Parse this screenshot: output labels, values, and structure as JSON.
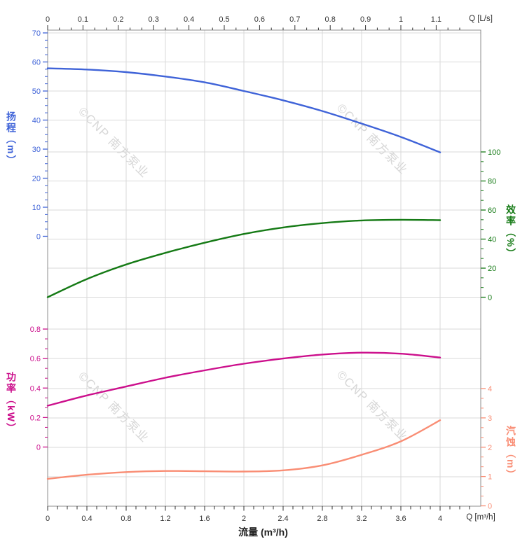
{
  "chart": {
    "watermark": "©CNP 南方泵业",
    "colors": {
      "head": "#3f63d8",
      "efficiency": "#157a15",
      "power": "#cc0f8c",
      "npsh": "#f98d74",
      "grid": "#d9d9d9",
      "border": "#8c8c8c",
      "tick": "#333333"
    },
    "axes": {
      "top": {
        "unit_label": "Q [L/s]",
        "ticks": [
          "0",
          "0.1",
          "0.2",
          "0.3",
          "0.4",
          "0.5",
          "0.6",
          "0.7",
          "0.8",
          "0.9",
          "1",
          "1.1"
        ]
      },
      "bottom": {
        "unit_label": "Q [m³/h]",
        "title": "流量 (m³/h)",
        "ticks": [
          "0",
          "0.4",
          "0.8",
          "1.2",
          "1.6",
          "2",
          "2.4",
          "2.8",
          "3.2",
          "3.6",
          "4"
        ]
      },
      "head": {
        "title": "扬程（m）",
        "ticks": [
          "70",
          "60",
          "50",
          "40",
          "30",
          "20",
          "10",
          "0"
        ]
      },
      "efficiency": {
        "title": "效率（%）",
        "ticks": [
          "100",
          "80",
          "60",
          "40",
          "20",
          "0"
        ]
      },
      "power": {
        "title": "功率（kW）",
        "ticks": [
          "0.8",
          "0.6",
          "0.4",
          "0.2",
          "0"
        ]
      },
      "npsh": {
        "title": "汽蚀（m）",
        "ticks": [
          "4",
          "3",
          "2",
          "1",
          "0"
        ]
      }
    }
  },
  "chart_data": {
    "type": "line",
    "title": "",
    "xlabel": "流量 (m³/h)",
    "x_units": {
      "bottom": "m³/h",
      "top": "L/s"
    },
    "x": [
      0,
      0.4,
      0.8,
      1.2,
      1.6,
      2.0,
      2.4,
      2.8,
      3.2,
      3.6,
      4.0
    ],
    "x_range_bottom": [
      0,
      4.4
    ],
    "x_range_top_Ls": [
      0,
      1.22
    ],
    "grid": true,
    "legend": "none",
    "series": [
      {
        "name": "扬程",
        "unit": "m",
        "axis_side": "left-top",
        "axis_range": [
          0,
          70
        ],
        "values": [
          57.8,
          57.4,
          56.5,
          55.0,
          53.0,
          50.0,
          46.8,
          43.1,
          38.8,
          34.2,
          28.9
        ]
      },
      {
        "name": "效率",
        "unit": "%",
        "axis_side": "right-top",
        "axis_range": [
          0,
          100
        ],
        "values": [
          0,
          12.5,
          22.5,
          30.5,
          37.5,
          43.5,
          48.0,
          51.0,
          52.8,
          53.3,
          53.0
        ]
      },
      {
        "name": "功率",
        "unit": "kW",
        "axis_side": "left-bottom",
        "axis_range": [
          0,
          0.8
        ],
        "values": [
          0.28,
          0.35,
          0.41,
          0.47,
          0.52,
          0.565,
          0.6,
          0.627,
          0.64,
          0.633,
          0.607
        ]
      },
      {
        "name": "汽蚀",
        "unit": "m",
        "axis_side": "right-bottom",
        "axis_range": [
          0,
          4
        ],
        "values": [
          0.92,
          1.06,
          1.15,
          1.19,
          1.18,
          1.17,
          1.21,
          1.38,
          1.74,
          2.2,
          2.92
        ]
      }
    ]
  }
}
